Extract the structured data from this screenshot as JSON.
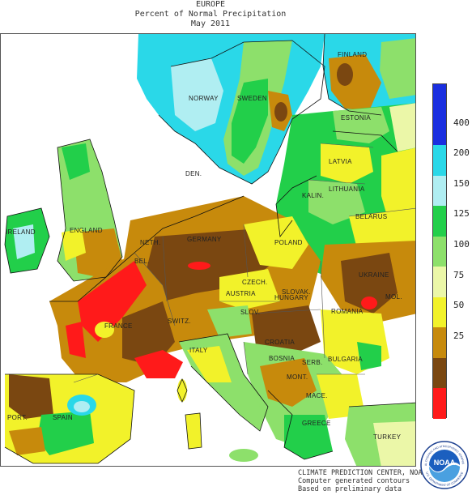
{
  "title": {
    "line1": "EUROPE",
    "line2": "Percent of Normal Precipitation",
    "line3": "May 2011"
  },
  "legend": {
    "bands": [
      {
        "from": 400,
        "to": null,
        "color": "#1a2fe0"
      },
      {
        "from": 300,
        "to": 400,
        "color": "#1a2fe0"
      },
      {
        "from": 200,
        "to": 300,
        "color": "#2ad8e8"
      },
      {
        "from": 150,
        "to": 200,
        "color": "#b0eef2"
      },
      {
        "from": 125,
        "to": 150,
        "color": "#22cf4a"
      },
      {
        "from": 100,
        "to": 125,
        "color": "#8de06b"
      },
      {
        "from": 75,
        "to": 100,
        "color": "#ebf7a8"
      },
      {
        "from": 50,
        "to": 75,
        "color": "#f2f22a"
      },
      {
        "from": 25,
        "to": 50,
        "color": "#c78a0c"
      },
      {
        "from": 0,
        "to": 25,
        "color": "#7a4711"
      },
      {
        "from": null,
        "to": 0,
        "color": "#ff1a1a"
      }
    ],
    "ticks": [
      "400",
      "200",
      "150",
      "125",
      "100",
      "75",
      "50",
      "25"
    ]
  },
  "map": {
    "labels": {
      "finland": "FINLAND",
      "norway": "NORWAY",
      "sweden": "SWEDEN",
      "estonia": "ESTONIA",
      "latvia": "LATVIA",
      "den": "DEN.",
      "kalin": "KALIN.",
      "lithuania": "LITHUANIA",
      "belarus": "BELARUS",
      "ireland": "IRELAND",
      "england": "ENGLAND",
      "neth": "NETH.",
      "germany": "GERMANY",
      "poland": "POLAND",
      "bel": "BEL.",
      "czech": "CZECH.",
      "slovak": "SLOVAK.",
      "ukraine": "UKRAINE",
      "mol": "MOL.",
      "france": "FRANCE",
      "switz": "SWITZ.",
      "austria": "AUSTRIA",
      "hungary": "HUNGARY",
      "romania": "ROMANIA",
      "slov": "SLOV.",
      "croatia": "CROATIA",
      "italy": "ITALY",
      "bosnia": "BOSNIA",
      "serb": "SERB.",
      "bulgaria": "BULGARIA",
      "mont": "MONT.",
      "mace": "MACE.",
      "port": "PORT.",
      "spain": "SPAIN",
      "greece": "GREECE",
      "turkey": "TURKEY"
    }
  },
  "credit": {
    "line1": "CLIMATE PREDICTION CENTER, NOAA",
    "line2": "Computer generated contours",
    "line3": "Based on preliminary data"
  },
  "logo": {
    "text": "NOAA",
    "ring_top": "NATIONAL OCEANIC AND ATMOSPHERIC ADMINISTRATION",
    "ring_bottom": "U.S. DEPARTMENT OF COMMERCE"
  }
}
